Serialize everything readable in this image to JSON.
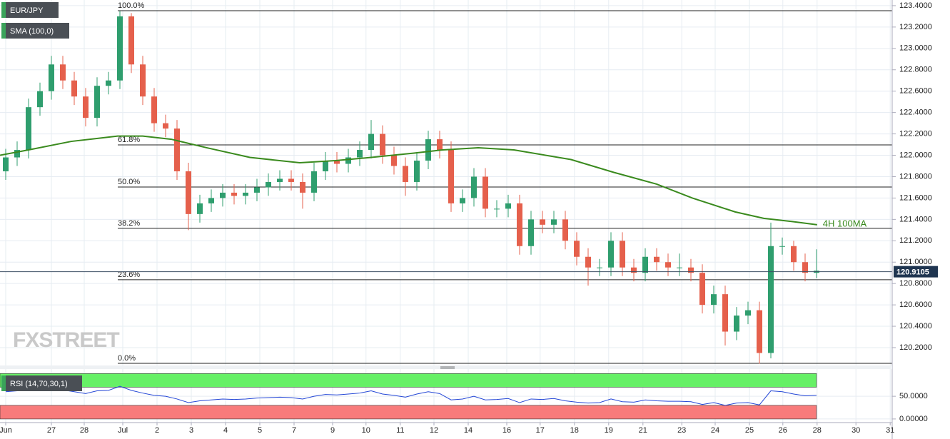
{
  "chart_data": [
    {
      "type": "candlestick",
      "title": "EUR/JPY",
      "indicator": "SMA (100,0)",
      "watermark": "FXSTREET",
      "x": [
        1,
        3,
        5,
        7,
        9,
        11,
        13,
        15,
        17,
        19,
        21,
        23,
        25,
        27,
        29,
        31,
        33,
        35,
        37,
        39,
        41,
        43,
        45,
        47,
        49,
        51,
        53,
        55,
        57,
        59,
        61,
        63,
        65,
        67,
        69,
        71,
        73,
        75,
        77,
        79,
        81,
        83,
        85,
        87,
        89,
        91,
        93,
        95,
        97,
        99,
        101,
        103,
        105,
        107,
        109,
        111,
        113,
        115,
        117,
        119,
        121,
        123,
        125,
        127,
        129,
        131,
        133,
        135,
        137,
        139,
        141,
        143
      ],
      "open": [
        121.85,
        121.98,
        122.05,
        122.45,
        122.6,
        122.85,
        122.7,
        122.55,
        122.35,
        122.65,
        122.7,
        123.3,
        122.85,
        122.55,
        122.3,
        122.25,
        121.85,
        121.45,
        121.55,
        121.6,
        121.65,
        121.62,
        121.65,
        121.7,
        121.75,
        121.78,
        121.75,
        121.65,
        121.85,
        121.95,
        121.92,
        121.98,
        122.05,
        122.2,
        122.0,
        121.9,
        121.75,
        121.95,
        122.15,
        122.05,
        121.55,
        121.6,
        121.8,
        121.5,
        121.5,
        121.55,
        121.15,
        121.4,
        121.35,
        121.4,
        121.2,
        121.05,
        120.95,
        120.95,
        121.2,
        120.95,
        120.9,
        121.05,
        121.0,
        120.95,
        120.95,
        120.9,
        120.6,
        120.7,
        120.35,
        120.5,
        120.55,
        120.15,
        121.15,
        121.15,
        121.0,
        120.9
      ],
      "high": [
        122.06,
        122.13,
        122.53,
        122.68,
        122.93,
        122.93,
        122.78,
        122.63,
        122.73,
        122.78,
        123.35,
        123.33,
        122.93,
        122.63,
        122.38,
        122.33,
        121.93,
        121.63,
        121.68,
        121.73,
        121.73,
        121.73,
        121.78,
        121.83,
        121.86,
        121.86,
        121.83,
        121.93,
        122.03,
        122.03,
        122.06,
        122.13,
        122.33,
        122.28,
        122.08,
        121.98,
        122.03,
        122.23,
        122.23,
        122.13,
        121.68,
        121.88,
        121.88,
        121.58,
        121.63,
        121.63,
        121.48,
        121.48,
        121.48,
        121.48,
        121.28,
        121.13,
        121.03,
        121.28,
        121.28,
        121.03,
        121.13,
        121.13,
        121.08,
        121.08,
        121.03,
        120.98,
        120.78,
        120.78,
        120.58,
        120.63,
        120.63,
        121.37,
        121.23,
        121.2,
        121.08,
        121.12
      ],
      "low": [
        121.77,
        121.9,
        121.97,
        122.37,
        122.52,
        122.62,
        122.47,
        122.27,
        122.27,
        122.57,
        122.62,
        122.77,
        122.47,
        122.22,
        122.17,
        121.77,
        121.3,
        121.37,
        121.47,
        121.52,
        121.54,
        121.54,
        121.57,
        121.62,
        121.67,
        121.67,
        121.5,
        121.57,
        121.77,
        121.84,
        121.84,
        121.9,
        121.97,
        121.92,
        121.82,
        121.62,
        121.67,
        121.87,
        121.97,
        121.47,
        121.47,
        121.52,
        121.42,
        121.42,
        121.42,
        121.07,
        121.07,
        121.27,
        121.27,
        121.12,
        120.97,
        120.78,
        120.87,
        120.87,
        120.87,
        120.82,
        120.82,
        120.92,
        120.87,
        120.87,
        120.82,
        120.52,
        120.52,
        120.22,
        120.27,
        120.42,
        120.05,
        120.1,
        121.07,
        120.92,
        120.82,
        120.85
      ],
      "close": [
        121.98,
        122.05,
        122.45,
        122.6,
        122.85,
        122.7,
        122.55,
        122.35,
        122.65,
        122.7,
        123.3,
        122.85,
        122.55,
        122.3,
        122.25,
        121.85,
        121.45,
        121.55,
        121.6,
        121.65,
        121.62,
        121.65,
        121.7,
        121.75,
        121.78,
        121.75,
        121.65,
        121.85,
        121.95,
        121.92,
        121.98,
        122.05,
        122.2,
        122.0,
        121.9,
        121.75,
        121.95,
        122.15,
        122.05,
        121.55,
        121.6,
        121.8,
        121.5,
        121.5,
        121.55,
        121.15,
        121.4,
        121.35,
        121.4,
        121.2,
        121.05,
        120.95,
        120.95,
        121.2,
        120.95,
        120.9,
        121.05,
        121.0,
        120.95,
        120.95,
        120.9,
        120.6,
        120.7,
        120.35,
        120.5,
        120.55,
        120.15,
        121.15,
        121.15,
        121.0,
        120.9,
        120.92
      ],
      "up_color": "#2f9e6e",
      "down_color": "#e5604c",
      "sma": {
        "x": [
          0,
          5,
          12.5,
          20.6,
          25,
          30,
          36.25,
          43.75,
          52.5,
          58.75,
          65,
          72.5,
          77.5,
          83.75,
          90,
          100,
          107.5,
          115,
          121.25,
          128.75,
          133.75,
          138.75,
          143.1
        ],
        "values": [
          122.0,
          122.05,
          122.13,
          122.18,
          122.18,
          122.15,
          122.07,
          121.98,
          121.93,
          121.95,
          121.98,
          122.02,
          122.05,
          122.07,
          122.05,
          121.96,
          121.84,
          121.73,
          121.6,
          121.47,
          121.41,
          121.38,
          121.35
        ],
        "color": "#3a8a1e",
        "name": "4H 100MA"
      },
      "levels": [
        {
          "label": "100.0%",
          "value": 123.353
        },
        {
          "label": "61.8%",
          "value": 122.097
        },
        {
          "label": "50.0%",
          "value": 121.703
        },
        {
          "label": "38.2%",
          "value": 121.316
        },
        {
          "label": "23.6%",
          "value": 120.835
        },
        {
          "label": "0.0%",
          "value": 120.053
        }
      ],
      "last_price": 120.9105,
      "xlim": [
        0,
        156.25
      ],
      "xticks": [
        {
          "value": 1,
          "label": "Jun"
        },
        {
          "value": 9,
          "label": "27"
        },
        {
          "value": 14.75,
          "label": "28"
        },
        {
          "value": 21.5,
          "label": "Jul"
        },
        {
          "value": 27.5,
          "label": "2"
        },
        {
          "value": 33.5,
          "label": "3"
        },
        {
          "value": 39.5,
          "label": "4"
        },
        {
          "value": 45.5,
          "label": "5"
        },
        {
          "value": 51.5,
          "label": "7"
        },
        {
          "value": 58.25,
          "label": "9"
        },
        {
          "value": 64.1,
          "label": "10"
        },
        {
          "value": 70.1,
          "label": "11"
        },
        {
          "value": 76,
          "label": "12"
        },
        {
          "value": 82,
          "label": "14"
        },
        {
          "value": 88.75,
          "label": "16"
        },
        {
          "value": 94.6,
          "label": "17"
        },
        {
          "value": 100.6,
          "label": "18"
        },
        {
          "value": 106.6,
          "label": "19"
        },
        {
          "value": 112.6,
          "label": "21"
        },
        {
          "value": 119.4,
          "label": "23"
        },
        {
          "value": 125.25,
          "label": "24"
        },
        {
          "value": 131.25,
          "label": "25"
        },
        {
          "value": 137.1,
          "label": "26"
        },
        {
          "value": 143.1,
          "label": "28"
        },
        {
          "value": 149.9,
          "label": "30"
        },
        {
          "value": 155.9,
          "label": "31"
        }
      ],
      "ylim": [
        120.033,
        123.453
      ],
      "yticks": [
        {
          "value": 120.2,
          "label": "120.2000"
        },
        {
          "value": 120.4,
          "label": "120.4000"
        },
        {
          "value": 120.6,
          "label": "120.6000"
        },
        {
          "value": 120.8,
          "label": "120.8000"
        },
        {
          "value": 121.0,
          "label": "121.0000"
        },
        {
          "value": 121.2,
          "label": "121.2000"
        },
        {
          "value": 121.4,
          "label": "121.4000"
        },
        {
          "value": 121.6,
          "label": "121.6000"
        },
        {
          "value": 121.8,
          "label": "121.8000"
        },
        {
          "value": 122.0,
          "label": "122.0000"
        },
        {
          "value": 122.2,
          "label": "122.2000"
        },
        {
          "value": 122.4,
          "label": "122.4000"
        },
        {
          "value": 122.6,
          "label": "122.6000"
        },
        {
          "value": 122.8,
          "label": "122.8000"
        },
        {
          "value": 123.0,
          "label": "123.0000"
        },
        {
          "value": 123.2,
          "label": "123.2000"
        },
        {
          "value": 123.4,
          "label": "123.4000"
        }
      ],
      "grid": true
    },
    {
      "type": "line",
      "title": "RSI (14,70,30,1)",
      "color": "#2346d6",
      "values": [
        60,
        62,
        66,
        65,
        68,
        64,
        60,
        56,
        62,
        63,
        72,
        63,
        57,
        52,
        50,
        44,
        36,
        40,
        42,
        44,
        43,
        44,
        46,
        47,
        48,
        47,
        44,
        50,
        54,
        53,
        55,
        57,
        62,
        55,
        52,
        48,
        55,
        60,
        56,
        42,
        44,
        50,
        42,
        43,
        45,
        36,
        44,
        43,
        45,
        40,
        37,
        35,
        36,
        44,
        38,
        37,
        42,
        40,
        39,
        39,
        38,
        32,
        36,
        30,
        35,
        36,
        31,
        62,
        60,
        55,
        51,
        52
      ],
      "bands": [
        {
          "from": 70,
          "to": 100,
          "color": "#66f066"
        },
        {
          "from": 0,
          "to": 30,
          "color": "#f87b7b"
        }
      ],
      "ylim": [
        -8,
        110
      ],
      "yticks": [
        {
          "value": 50,
          "label": "50.0000"
        },
        {
          "value": 0,
          "label": "0.00000"
        }
      ]
    }
  ]
}
